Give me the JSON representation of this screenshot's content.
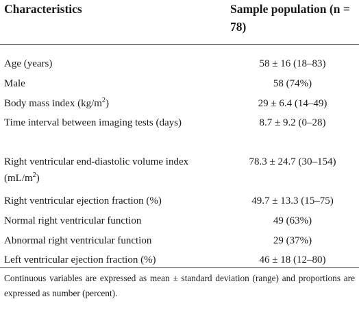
{
  "table": {
    "header": {
      "characteristics": "Characteristics",
      "sample_population": "Sample population (n = 78)"
    },
    "rows": [
      {
        "label": "Age (years)",
        "value": "58 ± 16 (18–83)"
      },
      {
        "label": "Male",
        "value": "58 (74%)"
      },
      {
        "label_parts": [
          "Body mass index (kg/m",
          "2",
          ")"
        ],
        "value": "29 ± 6.4 (14–49)"
      },
      {
        "label": "Time interval between imaging tests (days)",
        "value": "8.7 ± 9.2 (0–28)"
      },
      {
        "label_parts": [
          "Right ventricular end-diastolic volume index (mL/m",
          "2",
          ")"
        ],
        "value": "78.3 ± 24.7 (30–154)"
      },
      {
        "label": "Right ventricular ejection fraction (%)",
        "value": "49.7 ± 13.3 (15–75)"
      },
      {
        "label": "Normal right ventricular function",
        "value": "49 (63%)"
      },
      {
        "label": "Abnormal right ventricular function",
        "value": "29 (37%)"
      },
      {
        "label": "Left ventricular ejection fraction (%)",
        "value": "46 ± 18 (12–80)"
      }
    ],
    "footnote": "Continuous variables are expressed as mean ± standard deviation (range) and proportions are expressed as number (percent)."
  }
}
